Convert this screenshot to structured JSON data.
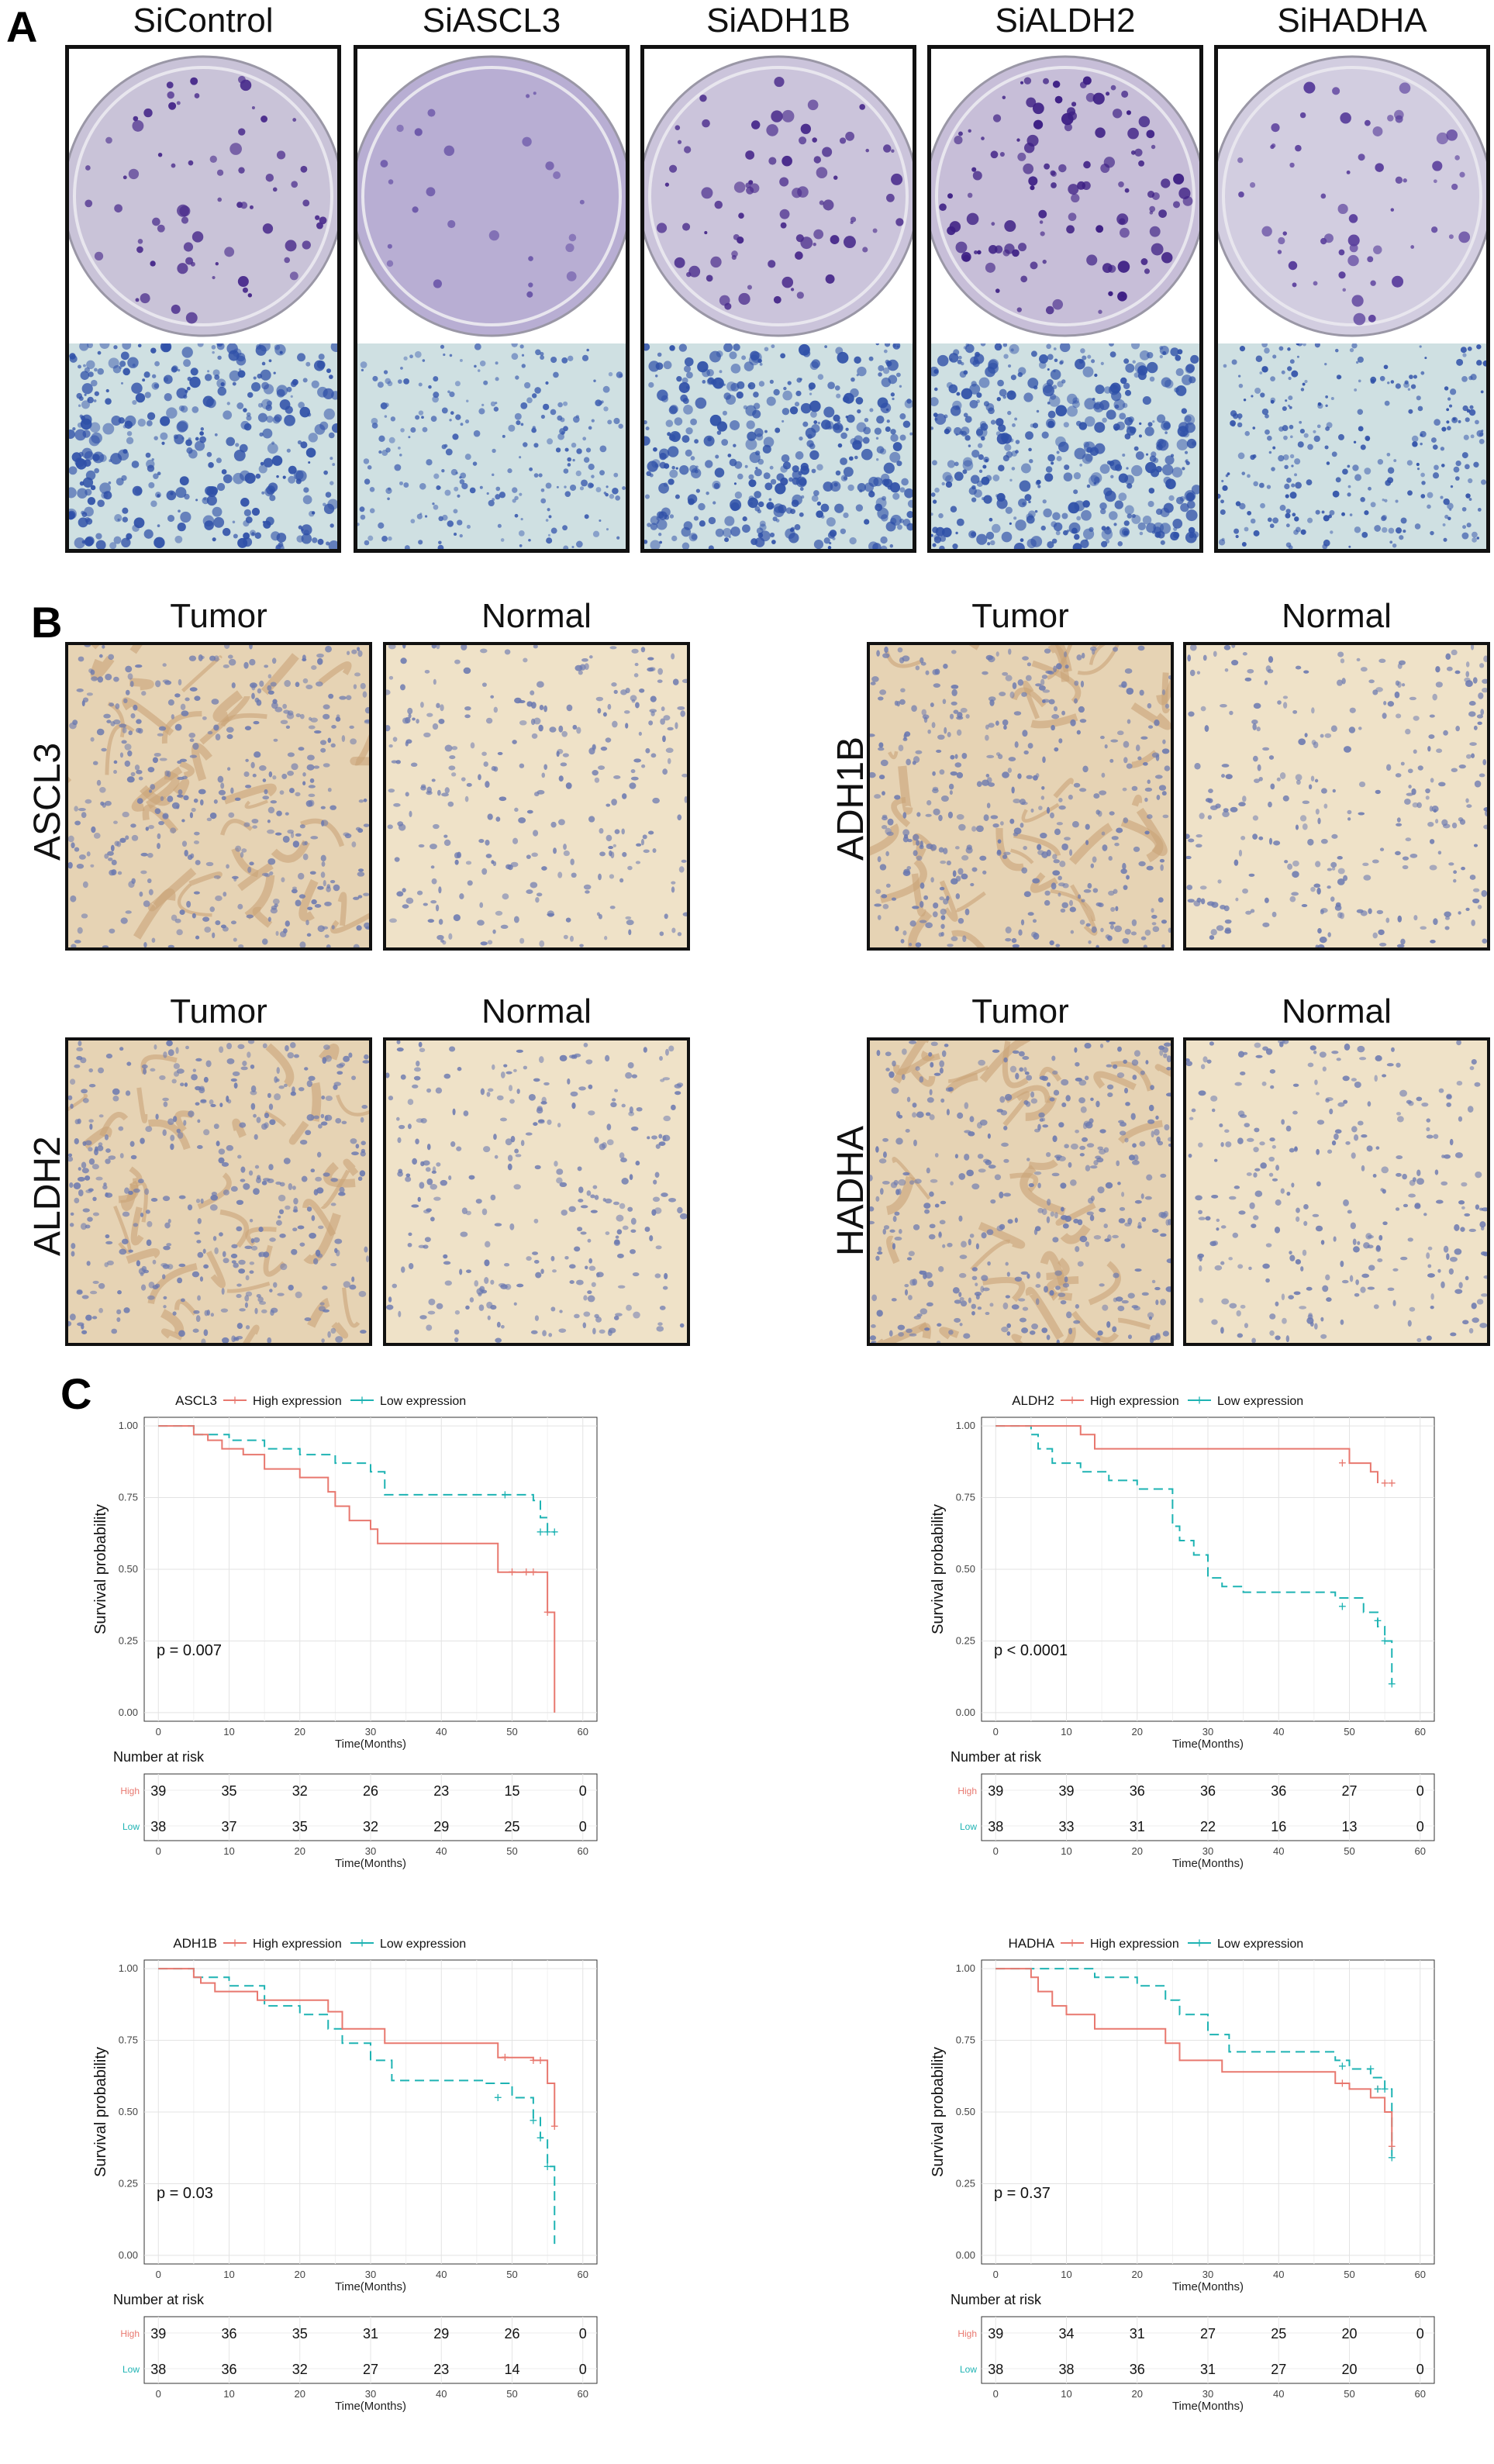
{
  "panels": {
    "a": "A",
    "b": "B",
    "c": "C"
  },
  "panel_a": {
    "columns": [
      "SiControl",
      "SiASCL3",
      "SiADH1B",
      "SiALDH2",
      "SiHADHA"
    ]
  },
  "panel_b": {
    "groups": [
      {
        "gene": "ASCL3",
        "tumor": "Tumor",
        "normal": "Normal"
      },
      {
        "gene": "ADH1B",
        "tumor": "Tumor",
        "normal": "Normal"
      },
      {
        "gene": "ALDH2",
        "tumor": "Tumor",
        "normal": "Normal"
      },
      {
        "gene": "HADHA",
        "tumor": "Tumor",
        "normal": "Normal"
      }
    ]
  },
  "colors": {
    "high": "#e8786f",
    "low": "#1eb3b3"
  },
  "chart_data": [
    {
      "type": "line",
      "title": "ASCL3",
      "xlabel": "Time(Months)",
      "ylabel": "Survival probability",
      "xlim": [
        0,
        60
      ],
      "ylim": [
        0,
        1
      ],
      "xticks": [
        "0",
        "10",
        "20",
        "30",
        "40",
        "50",
        "60"
      ],
      "yticks": [
        "0.00",
        "0.25",
        "0.50",
        "0.75",
        "1.00"
      ],
      "legend": "top",
      "pvalue": "p = 0.007",
      "series": [
        {
          "name": "High expression",
          "x": [
            0,
            5,
            7,
            9,
            12,
            15,
            20,
            24,
            25,
            27,
            30,
            31,
            48,
            54,
            55,
            56
          ],
          "y": [
            1.0,
            0.97,
            0.95,
            0.92,
            0.9,
            0.85,
            0.82,
            0.77,
            0.72,
            0.67,
            0.64,
            0.59,
            0.49,
            0.49,
            0.35,
            0.0
          ]
        },
        {
          "name": "Low expression",
          "x": [
            0,
            5,
            10,
            15,
            20,
            25,
            30,
            32,
            53,
            54,
            55,
            56
          ],
          "y": [
            1.0,
            0.97,
            0.95,
            0.92,
            0.9,
            0.87,
            0.84,
            0.76,
            0.74,
            0.68,
            0.63,
            0.63
          ]
        }
      ],
      "censor_high": [
        [
          50,
          0.49
        ],
        [
          52,
          0.49
        ],
        [
          53,
          0.49
        ],
        [
          55,
          0.35
        ]
      ],
      "censor_low": [
        [
          49,
          0.76
        ],
        [
          54,
          0.63
        ],
        [
          55,
          0.63
        ],
        [
          56,
          0.63
        ]
      ],
      "risk_title": "Number at risk",
      "risk": [
        {
          "label": "High",
          "values": [
            "39",
            "35",
            "32",
            "26",
            "23",
            "15",
            "0"
          ]
        },
        {
          "label": "Low",
          "values": [
            "38",
            "37",
            "35",
            "32",
            "29",
            "25",
            "0"
          ]
        }
      ]
    },
    {
      "type": "line",
      "title": "ALDH2",
      "xlabel": "Time(Months)",
      "ylabel": "Survival probability",
      "xlim": [
        0,
        60
      ],
      "ylim": [
        0,
        1
      ],
      "xticks": [
        "0",
        "10",
        "20",
        "30",
        "40",
        "50",
        "60"
      ],
      "yticks": [
        "0.00",
        "0.25",
        "0.50",
        "0.75",
        "1.00"
      ],
      "legend": "top",
      "pvalue": "p < 0.0001",
      "series": [
        {
          "name": "High expression",
          "x": [
            0,
            10,
            12,
            14,
            48,
            50,
            53,
            54
          ],
          "y": [
            1.0,
            1.0,
            0.97,
            0.92,
            0.92,
            0.87,
            0.84,
            0.8
          ]
        },
        {
          "name": "Low expression",
          "x": [
            0,
            5,
            6,
            8,
            12,
            16,
            20,
            25,
            26,
            28,
            30,
            32,
            35,
            48,
            52,
            54,
            55,
            56
          ],
          "y": [
            1.0,
            0.97,
            0.92,
            0.87,
            0.84,
            0.81,
            0.78,
            0.65,
            0.6,
            0.55,
            0.47,
            0.44,
            0.42,
            0.4,
            0.35,
            0.3,
            0.25,
            0.1
          ]
        }
      ],
      "censor_high": [
        [
          49,
          0.87
        ],
        [
          55,
          0.8
        ],
        [
          56,
          0.8
        ]
      ],
      "censor_low": [
        [
          49,
          0.37
        ],
        [
          54,
          0.32
        ],
        [
          55,
          0.25
        ],
        [
          56,
          0.1
        ]
      ],
      "risk_title": "Number at risk",
      "risk": [
        {
          "label": "High",
          "values": [
            "39",
            "39",
            "36",
            "36",
            "36",
            "27",
            "0"
          ]
        },
        {
          "label": "Low",
          "values": [
            "38",
            "33",
            "31",
            "22",
            "16",
            "13",
            "0"
          ]
        }
      ]
    },
    {
      "type": "line",
      "title": "ADH1B",
      "xlabel": "Time(Months)",
      "ylabel": "Survival probability",
      "xlim": [
        0,
        60
      ],
      "ylim": [
        0,
        1
      ],
      "xticks": [
        "0",
        "10",
        "20",
        "30",
        "40",
        "50",
        "60"
      ],
      "yticks": [
        "0.00",
        "0.25",
        "0.50",
        "0.75",
        "1.00"
      ],
      "legend": "top",
      "pvalue": "p = 0.03",
      "series": [
        {
          "name": "High expression",
          "x": [
            0,
            5,
            6,
            8,
            10,
            14,
            24,
            26,
            32,
            48,
            53,
            55,
            56
          ],
          "y": [
            1.0,
            0.97,
            0.95,
            0.92,
            0.92,
            0.89,
            0.85,
            0.79,
            0.74,
            0.69,
            0.68,
            0.6,
            0.45
          ]
        },
        {
          "name": "Low expression",
          "x": [
            0,
            5,
            10,
            15,
            20,
            24,
            26,
            30,
            33,
            46,
            50,
            53,
            54,
            55,
            56
          ],
          "y": [
            1.0,
            0.97,
            0.94,
            0.87,
            0.84,
            0.79,
            0.74,
            0.68,
            0.61,
            0.6,
            0.55,
            0.48,
            0.41,
            0.31,
            0.04
          ]
        }
      ],
      "censor_high": [
        [
          49,
          0.69
        ],
        [
          53,
          0.68
        ],
        [
          54,
          0.68
        ],
        [
          56,
          0.45
        ]
      ],
      "censor_low": [
        [
          48,
          0.55
        ],
        [
          53,
          0.47
        ],
        [
          54,
          0.41
        ],
        [
          55,
          0.31
        ]
      ],
      "risk_title": "Number at risk",
      "risk": [
        {
          "label": "High",
          "values": [
            "39",
            "36",
            "35",
            "31",
            "29",
            "26",
            "0"
          ]
        },
        {
          "label": "Low",
          "values": [
            "38",
            "36",
            "32",
            "27",
            "23",
            "14",
            "0"
          ]
        }
      ]
    },
    {
      "type": "line",
      "title": "HADHA",
      "xlabel": "Time(Months)",
      "ylabel": "Survival probability",
      "xlim": [
        0,
        60
      ],
      "ylim": [
        0,
        1
      ],
      "xticks": [
        "0",
        "10",
        "20",
        "30",
        "40",
        "50",
        "60"
      ],
      "yticks": [
        "0.00",
        "0.25",
        "0.50",
        "0.75",
        "1.00"
      ],
      "legend": "top",
      "pvalue": "p = 0.37",
      "series": [
        {
          "name": "High expression",
          "x": [
            0,
            5,
            6,
            8,
            10,
            14,
            24,
            26,
            32,
            48,
            50,
            53,
            55,
            56
          ],
          "y": [
            1.0,
            0.97,
            0.92,
            0.87,
            0.84,
            0.79,
            0.74,
            0.68,
            0.64,
            0.6,
            0.58,
            0.55,
            0.5,
            0.38
          ]
        },
        {
          "name": "Low expression",
          "x": [
            0,
            14,
            20,
            24,
            26,
            30,
            33,
            48,
            50,
            53,
            55,
            56
          ],
          "y": [
            1.0,
            0.97,
            0.94,
            0.89,
            0.84,
            0.77,
            0.71,
            0.68,
            0.65,
            0.62,
            0.58,
            0.34
          ]
        }
      ],
      "censor_high": [
        [
          49,
          0.6
        ],
        [
          54,
          0.58
        ],
        [
          56,
          0.38
        ]
      ],
      "censor_low": [
        [
          49,
          0.66
        ],
        [
          53,
          0.65
        ],
        [
          54,
          0.58
        ],
        [
          55,
          0.58
        ],
        [
          56,
          0.34
        ]
      ],
      "risk_title": "Number at risk",
      "risk": [
        {
          "label": "High",
          "values": [
            "39",
            "34",
            "31",
            "27",
            "25",
            "20",
            "0"
          ]
        },
        {
          "label": "Low",
          "values": [
            "38",
            "38",
            "36",
            "31",
            "27",
            "20",
            "0"
          ]
        }
      ]
    }
  ]
}
